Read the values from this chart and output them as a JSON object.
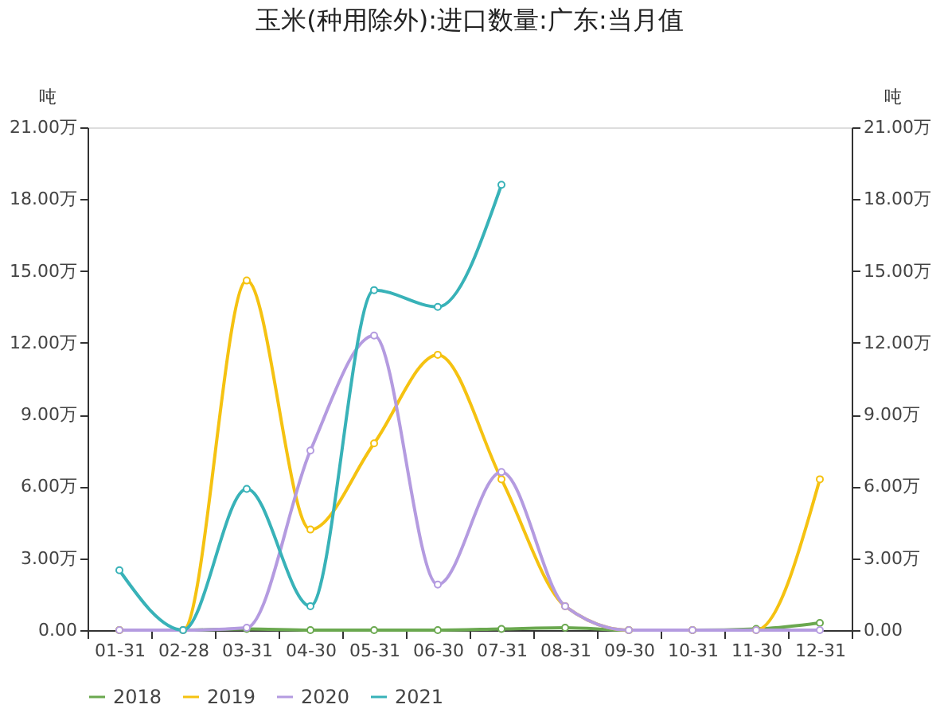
{
  "chart_data": {
    "type": "line",
    "title": "玉米(种用除外):进口数量:广东:当月值",
    "categories": [
      "01-31",
      "02-28",
      "03-31",
      "04-30",
      "05-31",
      "06-30",
      "07-31",
      "08-31",
      "09-30",
      "10-31",
      "11-30",
      "12-31"
    ],
    "series": [
      {
        "name": "2018",
        "color": "#6aa84f",
        "values": [
          0,
          0,
          0.05,
          0,
          0,
          0,
          0.05,
          0.1,
          0,
          0,
          0.05,
          0.3
        ]
      },
      {
        "name": "2019",
        "color": "#f5c211",
        "values": [
          0,
          0,
          14.6,
          4.2,
          7.8,
          11.5,
          6.3,
          1.0,
          0,
          0,
          0,
          6.3
        ]
      },
      {
        "name": "2020",
        "color": "#b49be0",
        "values": [
          0,
          0,
          0.1,
          7.5,
          12.3,
          1.9,
          6.6,
          1.0,
          0,
          0,
          0,
          0
        ]
      },
      {
        "name": "2021",
        "color": "#38b2b8",
        "values": [
          2.5,
          0,
          5.9,
          1.0,
          14.2,
          13.5,
          18.6,
          null,
          null,
          null,
          null,
          null
        ]
      }
    ],
    "ylabel": "吨",
    "y2label": "吨",
    "ylim": [
      0,
      21
    ],
    "yticks": [
      {
        "value": 0,
        "label": "0.00"
      },
      {
        "value": 3,
        "label": "3.00万"
      },
      {
        "value": 6,
        "label": "6.00万"
      },
      {
        "value": 9,
        "label": "9.00万"
      },
      {
        "value": 12,
        "label": "12.00万"
      },
      {
        "value": 15,
        "label": "15.00万"
      },
      {
        "value": 18,
        "label": "18.00万"
      },
      {
        "value": 21,
        "label": "21.00万"
      }
    ],
    "y2lim": [
      0,
      21
    ],
    "y2ticks": [
      {
        "value": 0,
        "label": "0.00"
      },
      {
        "value": 3,
        "label": "3.00万"
      },
      {
        "value": 6,
        "label": "6.00万"
      },
      {
        "value": 9,
        "label": "9.00万"
      },
      {
        "value": 12,
        "label": "12.00万"
      },
      {
        "value": 15,
        "label": "15.00万"
      },
      {
        "value": 18,
        "label": "18.00万"
      },
      {
        "value": 21,
        "label": "21.00万"
      }
    ],
    "legend": "bottom",
    "grid": false,
    "marker": "circle",
    "line_style": "solid"
  }
}
